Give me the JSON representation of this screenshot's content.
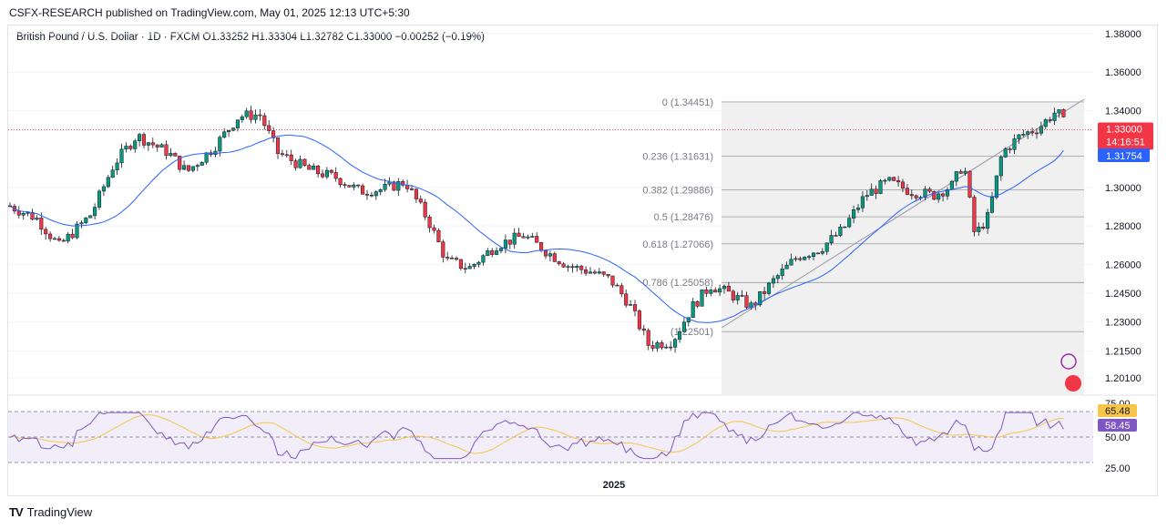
{
  "header": {
    "published_text": "CSFX-RESEARCH published on TradingView.com, May 01, 2025 12:13 UTC+5:30"
  },
  "legend": {
    "text": "British Pound / U.S. Dollar · 1D · FXCM  O1.33252  H1.33304  L1.32782  C1.33000  −0.00252 (−0.19%)"
  },
  "footer": {
    "brand": "TradingView",
    "logo": "TV-logo-icon"
  },
  "colors": {
    "up": "#089981",
    "down": "#f23645",
    "ma": "#2962ff",
    "rsi": "#7e57c2",
    "rsi_ma": "#f7c548",
    "price_tag": "#f23645",
    "ma_tag": "#2962ff"
  },
  "chart_data": [
    {
      "type": "candlestick",
      "x_label": "2025",
      "y_ticks": [
        "1.38000",
        "1.36000",
        "1.34000",
        "1.30000",
        "1.28000",
        "1.26000",
        "1.24500",
        "1.23000",
        "1.21500",
        "1.20100"
      ],
      "last_price": "1.33000",
      "countdown": "14:16:51",
      "ma_value": "1.31754",
      "fib_levels": [
        {
          "label": "0 (1.34451)",
          "value": 1.34451
        },
        {
          "label": "0.236 (1.31631)",
          "value": 1.31631
        },
        {
          "label": "0.382 (1.29886)",
          "value": 1.29886
        },
        {
          "label": "0.5 (1.28476)",
          "value": 1.28476
        },
        {
          "label": "0.618 (1.27066)",
          "value": 1.27066
        },
        {
          "label": "0.786 (1.25058)",
          "value": 1.25058
        },
        {
          "label": "(1.22501)",
          "value": 1.22501
        }
      ],
      "ohlc_sample_last": {
        "open": 1.33252,
        "high": 1.33304,
        "low": 1.32782,
        "close": 1.33
      }
    },
    {
      "type": "line",
      "name_hidden": "RSI",
      "y_ticks": [
        "75.00",
        "50.00",
        "25.00"
      ],
      "rsi_value": "58.45",
      "rsi_ma_value": "65.48"
    }
  ]
}
